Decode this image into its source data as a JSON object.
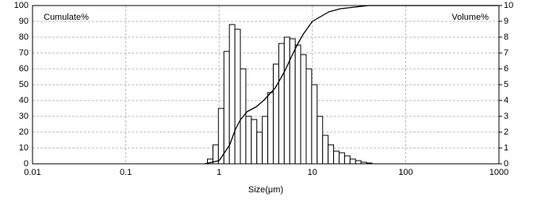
{
  "chart_data": {
    "type": "histogram",
    "y_label": "Cumulate%",
    "y2_label": "Volume%",
    "x_label": "Size(μm)",
    "log_x": true,
    "grid": true,
    "xlim": [
      0.01,
      1000
    ],
    "xticks": [
      0.01,
      0.1,
      1,
      10,
      100,
      1000
    ],
    "ylim": [
      0,
      100
    ],
    "yticks": [
      0,
      10,
      20,
      30,
      40,
      50,
      60,
      70,
      80,
      90,
      100
    ],
    "y2lim": [
      0,
      10
    ],
    "y2ticks": [
      0,
      1,
      2,
      3,
      4,
      5,
      6,
      7,
      8,
      9,
      10
    ],
    "bins": [
      0.75,
      0.859,
      0.983,
      1.126,
      1.289,
      1.476,
      1.69,
      1.935,
      2.216,
      2.537,
      2.905,
      3.326,
      3.808,
      4.361,
      4.993,
      5.717,
      6.546,
      7.495,
      8.582,
      9.826,
      11.25,
      12.88,
      14.75,
      16.89,
      19.34,
      22.14,
      25.35,
      29.03,
      33.24,
      38.06,
      43.58
    ],
    "series": [
      {
        "name": "Volume%",
        "axis": "y2",
        "color": "#000000",
        "values": [
          0.3,
          1.2,
          3.5,
          7.1,
          8.8,
          8.5,
          6.0,
          3.0,
          2.8,
          2.0,
          3.0,
          4.5,
          6.3,
          7.6,
          8.0,
          7.9,
          7.5,
          6.9,
          6.0,
          5.0,
          3.0,
          1.8,
          1.2,
          0.8,
          0.7,
          0.5,
          0.3,
          0.2,
          0.1,
          0.05
        ]
      },
      {
        "name": "Cumulate%",
        "type": "line",
        "color": "#000000",
        "x": [
          0.7,
          1,
          1.3,
          1.5,
          1.7,
          2,
          2.5,
          3,
          4,
          5,
          6,
          7,
          8,
          10,
          15,
          20,
          40,
          1000
        ],
        "values": [
          0,
          2,
          12,
          22,
          28,
          33,
          36,
          40,
          48,
          58,
          68,
          76,
          82,
          90,
          96,
          98,
          100,
          100
        ]
      }
    ]
  }
}
